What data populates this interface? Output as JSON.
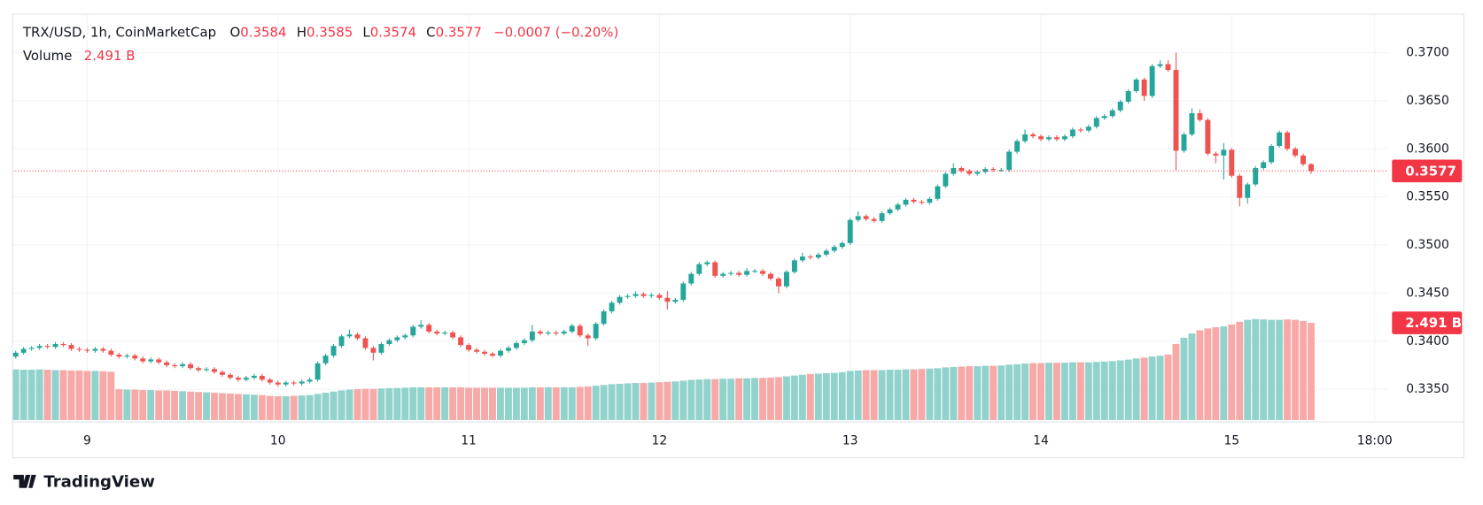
{
  "chart_data": {
    "type": "candlestick",
    "title": "TRX/USD, 1h, CoinMarketCap",
    "ohlc_letters": [
      "O",
      "H",
      "L",
      "C"
    ],
    "change_label": "−0.0007 (−0.20%)",
    "volume_title": "Volume",
    "volume_value_label": "2.491 B",
    "up_color": "#26a69a",
    "down_color": "#ef5350",
    "volume_up_color": "#92d2cc",
    "volume_down_color": "#f7a9a7",
    "grid": true,
    "ylim": [
      0.3318,
      0.374
    ],
    "yticks": [
      {
        "value": 0.335,
        "label": "0.3350"
      },
      {
        "value": 0.34,
        "label": "0.3400"
      },
      {
        "value": 0.345,
        "label": "0.3450"
      },
      {
        "value": 0.35,
        "label": "0.3500"
      },
      {
        "value": 0.355,
        "label": "0.3550"
      },
      {
        "value": 0.36,
        "label": "0.3600"
      },
      {
        "value": 0.365,
        "label": "0.3650"
      },
      {
        "value": 0.37,
        "label": "0.3700"
      }
    ],
    "xlim": [
      -0.4,
      172.7
    ],
    "xticks": [
      {
        "value": 9,
        "label": "9"
      },
      {
        "value": 33,
        "label": "10"
      },
      {
        "value": 57,
        "label": "11"
      },
      {
        "value": 81,
        "label": "12"
      },
      {
        "value": 105,
        "label": "13"
      },
      {
        "value": 129,
        "label": "14"
      },
      {
        "value": 153,
        "label": "15"
      },
      {
        "value": 171,
        "label": "18:00"
      }
    ],
    "open": [
      0.3384,
      0.3388,
      0.3392,
      0.3393,
      0.3395,
      0.3394,
      0.3397,
      0.3396,
      0.3392,
      0.3391,
      0.339,
      0.3392,
      0.339,
      0.3386,
      0.3384,
      0.3385,
      0.3382,
      0.3379,
      0.3381,
      0.3378,
      0.3375,
      0.3374,
      0.3376,
      0.3372,
      0.337,
      0.3371,
      0.3368,
      0.3365,
      0.3362,
      0.336,
      0.3362,
      0.3364,
      0.336,
      0.3357,
      0.3355,
      0.3357,
      0.3356,
      0.3358,
      0.336,
      0.3377,
      0.3385,
      0.3395,
      0.3405,
      0.3407,
      0.3403,
      0.3393,
      0.3388,
      0.3397,
      0.3401,
      0.3404,
      0.3406,
      0.3415,
      0.3417,
      0.341,
      0.3408,
      0.3409,
      0.3404,
      0.3396,
      0.3391,
      0.3389,
      0.3387,
      0.3385,
      0.339,
      0.3393,
      0.3398,
      0.3401,
      0.341,
      0.3408,
      0.3409,
      0.3408,
      0.341,
      0.3416,
      0.3406,
      0.3403,
      0.3418,
      0.3431,
      0.344,
      0.3446,
      0.3447,
      0.3449,
      0.3447,
      0.3448,
      0.3445,
      0.3441,
      0.3443,
      0.346,
      0.347,
      0.348,
      0.3482,
      0.3468,
      0.347,
      0.3471,
      0.3469,
      0.3473,
      0.3473,
      0.347,
      0.3465,
      0.3457,
      0.3472,
      0.3484,
      0.3488,
      0.3487,
      0.349,
      0.3494,
      0.3498,
      0.3502,
      0.3526,
      0.353,
      0.3527,
      0.3525,
      0.3533,
      0.3537,
      0.3542,
      0.3547,
      0.3545,
      0.3544,
      0.3548,
      0.3561,
      0.3574,
      0.358,
      0.3577,
      0.3574,
      0.3576,
      0.3579,
      0.3578,
      0.3578,
      0.3597,
      0.3608,
      0.3615,
      0.3613,
      0.361,
      0.3612,
      0.361,
      0.3613,
      0.362,
      0.3619,
      0.3623,
      0.3632,
      0.3634,
      0.364,
      0.3649,
      0.366,
      0.3672,
      0.3655,
      0.3686,
      0.3688,
      0.3682,
      0.3598,
      0.3615,
      0.3637,
      0.363,
      0.3595,
      0.3593,
      0.3599,
      0.3572,
      0.3549,
      0.3563,
      0.358,
      0.3586,
      0.3603,
      0.3617,
      0.36,
      0.3593,
      0.3584
    ],
    "high": [
      0.339,
      0.3394,
      0.3395,
      0.3397,
      0.3397,
      0.3399,
      0.3399,
      0.3398,
      0.3394,
      0.3393,
      0.3394,
      0.3394,
      0.3392,
      0.3388,
      0.3387,
      0.3387,
      0.3384,
      0.3383,
      0.3383,
      0.338,
      0.3377,
      0.3378,
      0.3378,
      0.3374,
      0.3373,
      0.3373,
      0.337,
      0.3367,
      0.3364,
      0.3364,
      0.3366,
      0.3366,
      0.3362,
      0.3359,
      0.3359,
      0.3359,
      0.336,
      0.3362,
      0.3379,
      0.3387,
      0.3397,
      0.3407,
      0.3412,
      0.3409,
      0.3405,
      0.3395,
      0.3399,
      0.3403,
      0.3406,
      0.3408,
      0.3417,
      0.3422,
      0.3419,
      0.3412,
      0.3411,
      0.3411,
      0.3406,
      0.3398,
      0.3393,
      0.3391,
      0.3389,
      0.3392,
      0.3395,
      0.34,
      0.3403,
      0.3417,
      0.3412,
      0.3411,
      0.3411,
      0.3412,
      0.3418,
      0.3418,
      0.3408,
      0.342,
      0.3433,
      0.3442,
      0.3448,
      0.3449,
      0.3452,
      0.3451,
      0.345,
      0.345,
      0.3452,
      0.3445,
      0.3462,
      0.3472,
      0.3482,
      0.3484,
      0.3484,
      0.3472,
      0.3473,
      0.3473,
      0.3476,
      0.3475,
      0.3475,
      0.3472,
      0.3467,
      0.3474,
      0.3486,
      0.3492,
      0.349,
      0.3492,
      0.3496,
      0.35,
      0.3504,
      0.3528,
      0.3535,
      0.3532,
      0.3529,
      0.3535,
      0.3539,
      0.3544,
      0.3549,
      0.3549,
      0.3547,
      0.355,
      0.3563,
      0.3576,
      0.3585,
      0.3582,
      0.3579,
      0.3578,
      0.3581,
      0.3581,
      0.358,
      0.3599,
      0.361,
      0.362,
      0.3617,
      0.3615,
      0.3614,
      0.3614,
      0.3615,
      0.3622,
      0.3622,
      0.3625,
      0.3634,
      0.3636,
      0.3642,
      0.3651,
      0.3662,
      0.3674,
      0.3674,
      0.3688,
      0.3692,
      0.3692,
      0.37,
      0.3617,
      0.3642,
      0.3641,
      0.3632,
      0.3597,
      0.3606,
      0.3601,
      0.3574,
      0.3565,
      0.3582,
      0.3588,
      0.3605,
      0.3619,
      0.3619,
      0.3602,
      0.3595,
      0.3585
    ],
    "low": [
      0.3382,
      0.3386,
      0.339,
      0.3391,
      0.3392,
      0.3392,
      0.3394,
      0.339,
      0.3389,
      0.3388,
      0.3388,
      0.3388,
      0.3384,
      0.3382,
      0.3382,
      0.338,
      0.3377,
      0.3377,
      0.3376,
      0.3373,
      0.3372,
      0.3372,
      0.337,
      0.3368,
      0.3368,
      0.3366,
      0.3363,
      0.336,
      0.3358,
      0.3358,
      0.336,
      0.3358,
      0.3355,
      0.3353,
      0.3353,
      0.3354,
      0.3354,
      0.3356,
      0.3358,
      0.3375,
      0.3383,
      0.3393,
      0.3403,
      0.3401,
      0.3391,
      0.338,
      0.3386,
      0.3395,
      0.3399,
      0.3402,
      0.3404,
      0.3413,
      0.3408,
      0.3406,
      0.3406,
      0.3402,
      0.3394,
      0.3389,
      0.3387,
      0.3385,
      0.3383,
      0.3383,
      0.3388,
      0.3391,
      0.3396,
      0.3399,
      0.3406,
      0.3406,
      0.3406,
      0.3406,
      0.3408,
      0.3404,
      0.3395,
      0.3401,
      0.3416,
      0.3429,
      0.3438,
      0.3444,
      0.3445,
      0.3445,
      0.3445,
      0.3443,
      0.3433,
      0.3439,
      0.3441,
      0.3458,
      0.3468,
      0.3478,
      0.3466,
      0.3466,
      0.3468,
      0.3467,
      0.3467,
      0.3471,
      0.3468,
      0.3463,
      0.345,
      0.3455,
      0.347,
      0.3482,
      0.3485,
      0.3485,
      0.3488,
      0.3492,
      0.3496,
      0.35,
      0.3524,
      0.3525,
      0.3523,
      0.3523,
      0.3531,
      0.3535,
      0.354,
      0.3543,
      0.3542,
      0.3542,
      0.3546,
      0.3559,
      0.3572,
      0.3575,
      0.3572,
      0.3572,
      0.3574,
      0.3576,
      0.3576,
      0.3576,
      0.3595,
      0.3606,
      0.3611,
      0.3608,
      0.3608,
      0.3608,
      0.3608,
      0.3611,
      0.3617,
      0.3617,
      0.3621,
      0.363,
      0.3632,
      0.3638,
      0.3647,
      0.3658,
      0.365,
      0.3653,
      0.3684,
      0.368,
      0.3578,
      0.3596,
      0.3613,
      0.3628,
      0.3593,
      0.3585,
      0.3568,
      0.357,
      0.354,
      0.3543,
      0.3561,
      0.3578,
      0.3584,
      0.3601,
      0.3598,
      0.3591,
      0.3582,
      0.3574
    ],
    "close": [
      0.3388,
      0.3392,
      0.3393,
      0.3395,
      0.3394,
      0.3397,
      0.3396,
      0.3392,
      0.3391,
      0.339,
      0.3392,
      0.339,
      0.3386,
      0.3384,
      0.3385,
      0.3382,
      0.3379,
      0.3381,
      0.3378,
      0.3375,
      0.3374,
      0.3376,
      0.3372,
      0.337,
      0.3371,
      0.3368,
      0.3365,
      0.3362,
      0.336,
      0.3362,
      0.3364,
      0.336,
      0.3357,
      0.3355,
      0.3357,
      0.3356,
      0.3358,
      0.336,
      0.3377,
      0.3385,
      0.3395,
      0.3405,
      0.3407,
      0.3403,
      0.3393,
      0.3388,
      0.3397,
      0.3401,
      0.3404,
      0.3406,
      0.3415,
      0.3417,
      0.341,
      0.3408,
      0.3409,
      0.3404,
      0.3396,
      0.3391,
      0.3389,
      0.3387,
      0.3385,
      0.339,
      0.3393,
      0.3398,
      0.3401,
      0.341,
      0.3408,
      0.3409,
      0.3408,
      0.341,
      0.3416,
      0.3406,
      0.3403,
      0.3418,
      0.3431,
      0.344,
      0.3446,
      0.3447,
      0.3449,
      0.3447,
      0.3448,
      0.3445,
      0.3441,
      0.3443,
      0.346,
      0.347,
      0.348,
      0.3482,
      0.3468,
      0.347,
      0.3471,
      0.3469,
      0.3473,
      0.3473,
      0.347,
      0.3465,
      0.3457,
      0.3472,
      0.3484,
      0.3488,
      0.3487,
      0.349,
      0.3494,
      0.3498,
      0.3502,
      0.3526,
      0.353,
      0.3527,
      0.3525,
      0.3533,
      0.3537,
      0.3542,
      0.3547,
      0.3545,
      0.3544,
      0.3548,
      0.3561,
      0.3574,
      0.358,
      0.3577,
      0.3574,
      0.3576,
      0.3579,
      0.3578,
      0.3578,
      0.3597,
      0.3608,
      0.3615,
      0.3613,
      0.361,
      0.3612,
      0.361,
      0.3613,
      0.362,
      0.3619,
      0.3623,
      0.3632,
      0.3634,
      0.364,
      0.3649,
      0.366,
      0.3672,
      0.3655,
      0.3686,
      0.3688,
      0.3682,
      0.3598,
      0.3615,
      0.3637,
      0.363,
      0.3595,
      0.3593,
      0.3599,
      0.3572,
      0.3549,
      0.3563,
      0.358,
      0.3586,
      0.3603,
      0.3617,
      0.36,
      0.3593,
      0.3584,
      0.3577
    ],
    "volume": [
      1.3,
      1.29,
      1.29,
      1.3,
      1.29,
      1.28,
      1.28,
      1.27,
      1.27,
      1.26,
      1.26,
      1.25,
      1.24,
      0.79,
      0.78,
      0.78,
      0.77,
      0.77,
      0.76,
      0.76,
      0.75,
      0.74,
      0.73,
      0.72,
      0.71,
      0.7,
      0.69,
      0.68,
      0.67,
      0.66,
      0.65,
      0.64,
      0.62,
      0.61,
      0.61,
      0.62,
      0.63,
      0.64,
      0.67,
      0.7,
      0.73,
      0.76,
      0.78,
      0.79,
      0.8,
      0.8,
      0.81,
      0.82,
      0.82,
      0.83,
      0.84,
      0.84,
      0.84,
      0.84,
      0.84,
      0.84,
      0.84,
      0.83,
      0.83,
      0.83,
      0.83,
      0.83,
      0.83,
      0.83,
      0.83,
      0.84,
      0.84,
      0.84,
      0.84,
      0.84,
      0.84,
      0.85,
      0.86,
      0.88,
      0.9,
      0.92,
      0.93,
      0.94,
      0.95,
      0.95,
      0.96,
      0.97,
      0.98,
      0.99,
      1.01,
      1.03,
      1.04,
      1.05,
      1.05,
      1.06,
      1.06,
      1.07,
      1.07,
      1.08,
      1.08,
      1.09,
      1.1,
      1.12,
      1.14,
      1.16,
      1.18,
      1.19,
      1.2,
      1.21,
      1.23,
      1.26,
      1.27,
      1.28,
      1.28,
      1.28,
      1.29,
      1.29,
      1.3,
      1.3,
      1.31,
      1.32,
      1.33,
      1.35,
      1.36,
      1.37,
      1.38,
      1.38,
      1.39,
      1.39,
      1.4,
      1.42,
      1.43,
      1.45,
      1.46,
      1.46,
      1.47,
      1.47,
      1.47,
      1.48,
      1.48,
      1.48,
      1.49,
      1.5,
      1.51,
      1.53,
      1.55,
      1.58,
      1.6,
      1.63,
      1.65,
      1.68,
      1.95,
      2.11,
      2.22,
      2.3,
      2.35,
      2.38,
      2.4,
      2.45,
      2.52,
      2.57,
      2.59,
      2.58,
      2.57,
      2.57,
      2.58,
      2.57,
      2.54,
      2.491
    ]
  },
  "footer": {
    "brand": "TradingView"
  }
}
